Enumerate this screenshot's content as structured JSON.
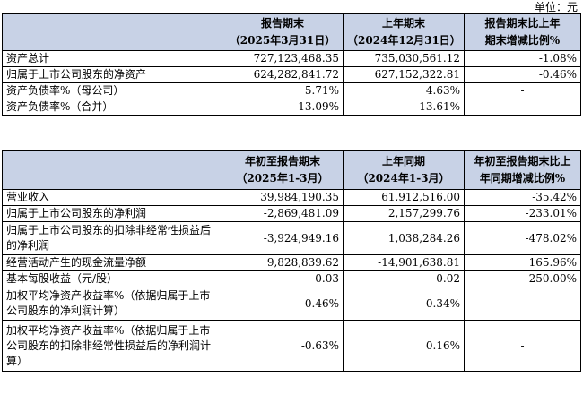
{
  "unit_label": "单位：元",
  "table1": {
    "headers": [
      "",
      "报告期末\n（2025年3月31日）",
      "上年期末\n（2024年12月31日）",
      "报告期末比上年\n期末增减比例%"
    ],
    "rows": [
      {
        "label": "资产总计",
        "current": "727,123,468.35",
        "previous": "735,030,561.12",
        "change": "-1.08%"
      },
      {
        "label": "归属于上市公司股东的净资产",
        "current": "624,282,841.72",
        "previous": "627,152,322.81",
        "change": "-0.46%"
      },
      {
        "label": "资产负债率%（母公司）",
        "current": "5.71%",
        "previous": "4.63%",
        "change": "-"
      },
      {
        "label": "资产负债率%（合并）",
        "current": "13.09%",
        "previous": "13.61%",
        "change": "-"
      }
    ]
  },
  "table2": {
    "headers": [
      "",
      "年初至报告期末\n（2025年1-3月）",
      "上年同期\n（2024年1-3月）",
      "年初至报告期末比上\n年同期增减比例%"
    ],
    "rows": [
      {
        "label": "营业收入",
        "current": "39,984,190.35",
        "previous": "61,912,516.00",
        "change": "-35.42%"
      },
      {
        "label": "归属于上市公司股东的净利润",
        "current": "-2,869,481.09",
        "previous": "2,157,299.76",
        "change": "-233.01%"
      },
      {
        "label": "归属于上市公司股东的扣除非经常性损益后的净利润",
        "current": "-3,924,949.16",
        "previous": "1,038,284.26",
        "change": "-478.02%"
      },
      {
        "label": "经营活动产生的现金流量净额",
        "current": "9,828,839.62",
        "previous": "-14,901,638.81",
        "change": "165.96%"
      },
      {
        "label": "基本每股收益（元/股）",
        "current": "-0.03",
        "previous": "0.02",
        "change": "-250.00%"
      },
      {
        "label": "加权平均净资产收益率%（依据归属于上市公司股东的净利润计算）",
        "current": "-0.46%",
        "previous": "0.34%",
        "change": "-"
      },
      {
        "label": "加权平均净资产收益率%（依据归属于上市公司股东的扣除非经常性损益后的净利润计算）",
        "current": "-0.63%",
        "previous": "0.16%",
        "change": "-"
      }
    ]
  }
}
